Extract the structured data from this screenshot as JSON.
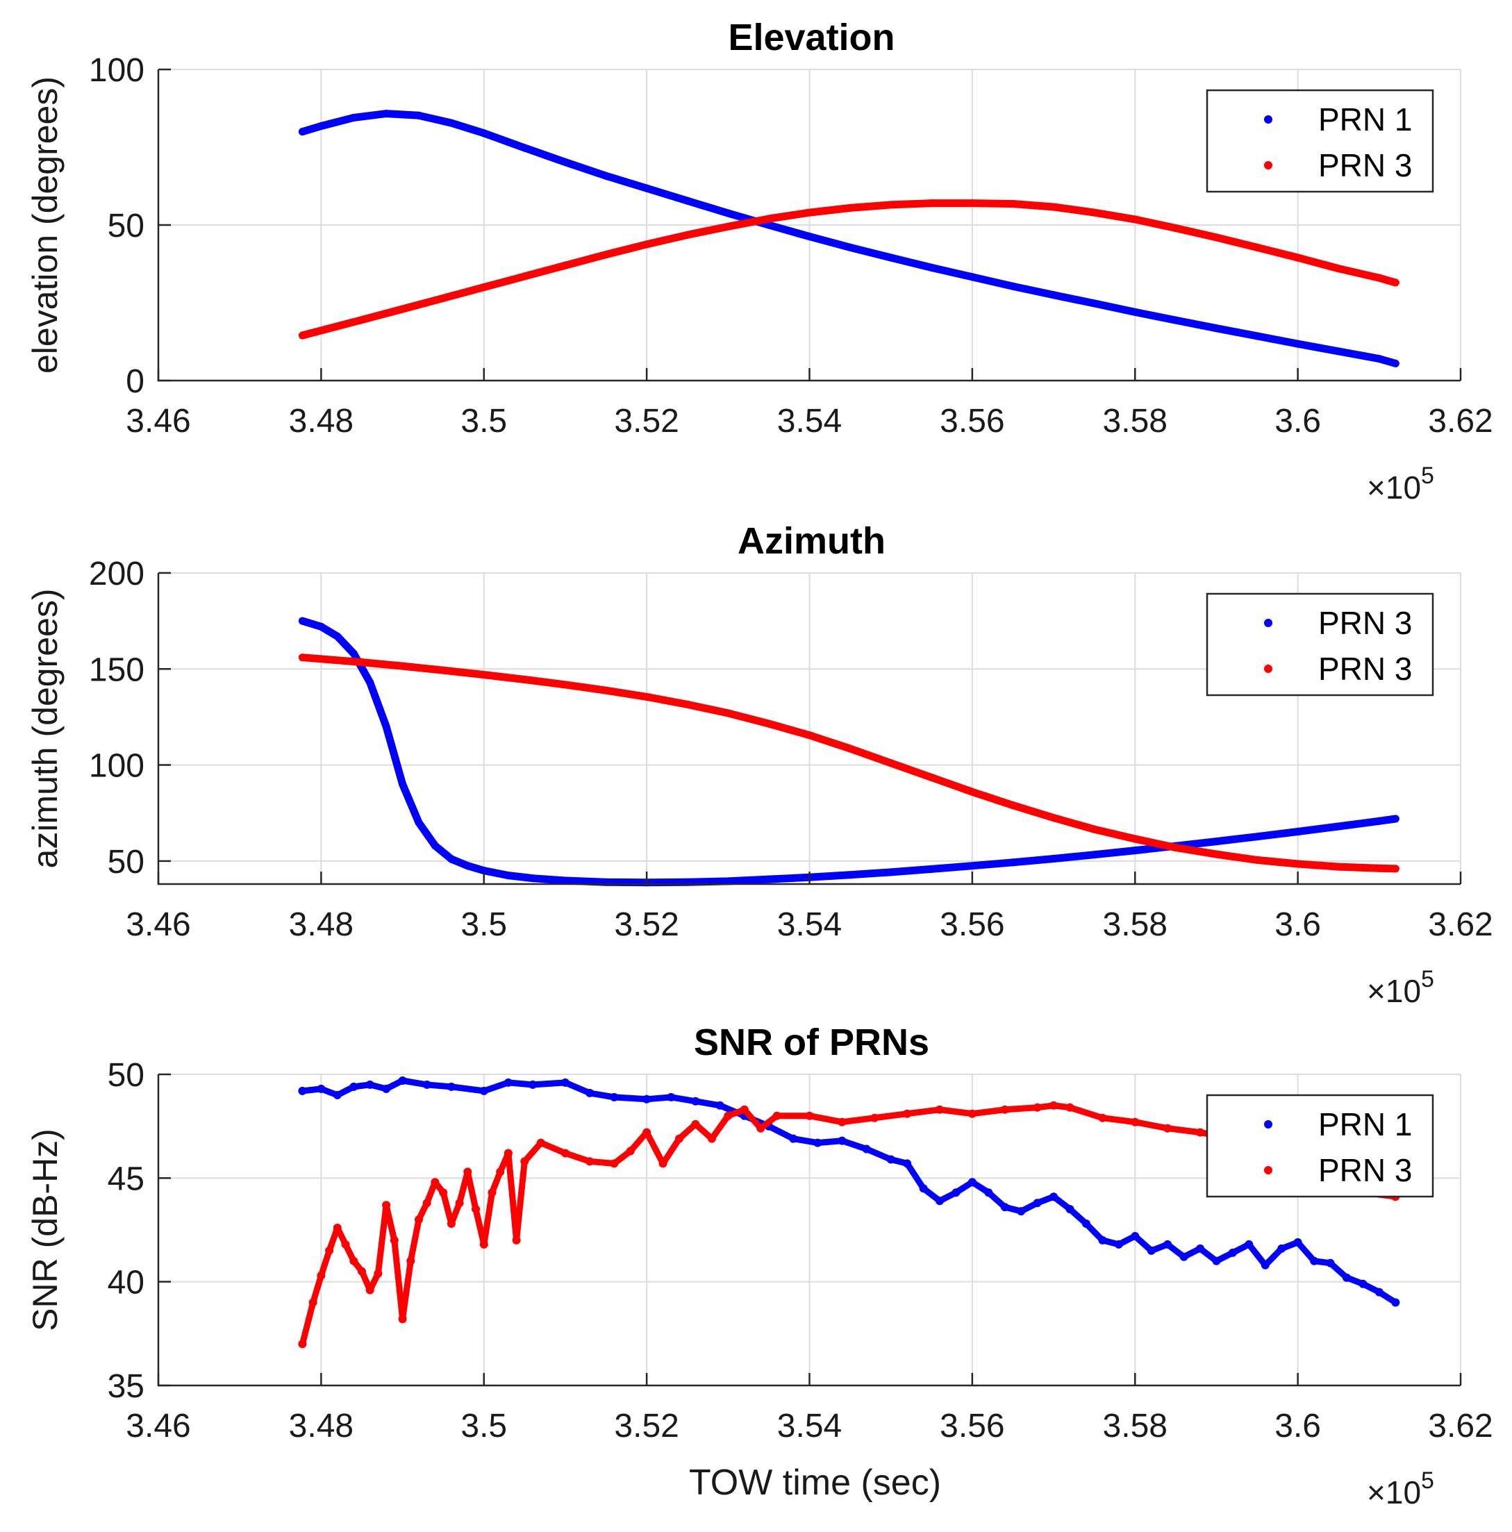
{
  "chart_data": [
    {
      "type": "scatter",
      "title": "Elevation",
      "xlabel": "",
      "ylabel": "elevation (degrees)",
      "xlim": [
        346000,
        362000
      ],
      "ylim": [
        0,
        100
      ],
      "x_ticks": [
        "3.46",
        "3.48",
        "3.5",
        "3.52",
        "3.54",
        "3.56",
        "3.58",
        "3.6",
        "3.62"
      ],
      "x_tick_values": [
        346000,
        348000,
        350000,
        352000,
        354000,
        356000,
        358000,
        360000,
        362000
      ],
      "x_exponent": "10",
      "x_exponent_power": "5",
      "y_ticks": [
        "0",
        "50",
        "100"
      ],
      "y_tick_values": [
        0,
        50,
        100
      ],
      "grid": true,
      "legend_position": "top-right",
      "series": [
        {
          "name": "PRN 1",
          "color": "#0000ff",
          "x": [
            347770,
            348000,
            348400,
            348800,
            349200,
            349600,
            350000,
            350500,
            351000,
            351500,
            352000,
            352500,
            353000,
            353500,
            354000,
            354500,
            355000,
            355500,
            356000,
            356500,
            357000,
            357500,
            358000,
            358500,
            359000,
            359500,
            360000,
            360500,
            361000,
            361200
          ],
          "y": [
            80,
            81.8,
            84.5,
            85.8,
            85.2,
            82.8,
            79.5,
            74.8,
            70.2,
            65.8,
            61.8,
            57.8,
            53.8,
            50,
            46.3,
            42.8,
            39.5,
            36.3,
            33.3,
            30.3,
            27.5,
            24.8,
            22,
            19.4,
            16.8,
            14.3,
            11.8,
            9.4,
            7,
            5.5
          ]
        },
        {
          "name": "PRN 3",
          "color": "#ff0000",
          "x": [
            347770,
            348500,
            349000,
            349500,
            350000,
            350500,
            351000,
            351500,
            352000,
            352500,
            353000,
            353500,
            354000,
            354500,
            355000,
            355500,
            356000,
            356500,
            357000,
            357500,
            358000,
            358500,
            359000,
            359500,
            360000,
            360500,
            361000,
            361200
          ],
          "y": [
            14.5,
            19.5,
            23,
            26.5,
            30,
            33.5,
            37,
            40.5,
            43.8,
            46.8,
            49.5,
            52,
            54,
            55.5,
            56.5,
            57,
            57,
            56.8,
            55.8,
            54,
            51.8,
            49,
            46,
            42.8,
            39.5,
            36,
            33,
            31.5
          ]
        }
      ]
    },
    {
      "type": "scatter",
      "title": "Azimuth",
      "xlabel": "",
      "ylabel": "azimuth (degrees)",
      "xlim": [
        346000,
        362000
      ],
      "ylim": [
        38,
        200
      ],
      "x_ticks": [
        "3.46",
        "3.48",
        "3.5",
        "3.52",
        "3.54",
        "3.56",
        "3.58",
        "3.6",
        "3.62"
      ],
      "x_tick_values": [
        346000,
        348000,
        350000,
        352000,
        354000,
        356000,
        358000,
        360000,
        362000
      ],
      "x_exponent": "10",
      "x_exponent_power": "5",
      "y_ticks": [
        "50",
        "100",
        "150",
        "200"
      ],
      "y_tick_values": [
        50,
        100,
        150,
        200
      ],
      "grid": true,
      "legend_position": "top-right",
      "series": [
        {
          "name": "PRN 3",
          "color": "#0000ff",
          "x": [
            347770,
            348000,
            348200,
            348400,
            348600,
            348800,
            349000,
            349200,
            349400,
            349600,
            349800,
            350000,
            350300,
            350600,
            351000,
            351500,
            352000,
            352500,
            353000,
            353500,
            354000,
            354500,
            355000,
            355500,
            356000,
            356500,
            357000,
            357500,
            358000,
            358500,
            359000,
            359500,
            360000,
            360500,
            361000,
            361200
          ],
          "y": [
            175,
            172,
            167,
            158,
            143,
            120,
            90,
            70,
            58,
            51,
            47.5,
            45,
            42.5,
            41,
            39.8,
            39,
            38.8,
            39,
            39.5,
            40.5,
            41.5,
            42.8,
            44.2,
            45.8,
            47.5,
            49.3,
            51.2,
            53.3,
            55.5,
            57.8,
            60.2,
            62.7,
            65.3,
            68,
            70.8,
            72
          ]
        },
        {
          "name": "PRN 3",
          "color": "#ff0000",
          "x": [
            347770,
            348500,
            349000,
            349500,
            350000,
            350500,
            351000,
            351500,
            352000,
            352500,
            353000,
            353500,
            354000,
            354500,
            355000,
            355500,
            356000,
            356500,
            357000,
            357500,
            358000,
            358500,
            359000,
            359500,
            360000,
            360500,
            361000,
            361200
          ],
          "y": [
            156,
            153.5,
            151.5,
            149.3,
            147,
            144.5,
            141.8,
            138.8,
            135.5,
            131.5,
            127,
            121.5,
            115.5,
            108.5,
            101,
            93.5,
            86,
            79,
            72.5,
            66.5,
            61.5,
            57,
            53.5,
            50.5,
            48.5,
            47,
            46.2,
            46
          ]
        }
      ]
    },
    {
      "type": "scatter",
      "title": "SNR of PRNs",
      "xlabel": "TOW time (sec)",
      "ylabel": "SNR (dB-Hz)",
      "xlim": [
        346000,
        362000
      ],
      "ylim": [
        35,
        50
      ],
      "x_ticks": [
        "3.46",
        "3.48",
        "3.5",
        "3.52",
        "3.54",
        "3.56",
        "3.58",
        "3.6",
        "3.62"
      ],
      "x_tick_values": [
        346000,
        348000,
        350000,
        352000,
        354000,
        356000,
        358000,
        360000,
        362000
      ],
      "x_exponent": "10",
      "x_exponent_power": "5",
      "y_ticks": [
        "35",
        "40",
        "45",
        "50"
      ],
      "y_tick_values": [
        35,
        40,
        45,
        50
      ],
      "grid": true,
      "legend_position": "top-right",
      "series": [
        {
          "name": "PRN 1",
          "color": "#0000ff",
          "x": [
            347770,
            348000,
            348200,
            348400,
            348600,
            348800,
            349000,
            349300,
            349600,
            350000,
            350300,
            350600,
            351000,
            351300,
            351600,
            352000,
            352300,
            352600,
            352900,
            353200,
            353500,
            353800,
            354100,
            354400,
            354700,
            355000,
            355200,
            355400,
            355600,
            355800,
            356000,
            356200,
            356400,
            356600,
            356800,
            357000,
            357200,
            357400,
            357600,
            357800,
            358000,
            358200,
            358400,
            358600,
            358800,
            359000,
            359200,
            359400,
            359600,
            359800,
            360000,
            360200,
            360400,
            360600,
            360800,
            361000,
            361200
          ],
          "y": [
            49.2,
            49.3,
            49.0,
            49.4,
            49.5,
            49.3,
            49.7,
            49.5,
            49.4,
            49.2,
            49.6,
            49.5,
            49.6,
            49.1,
            48.9,
            48.8,
            48.9,
            48.7,
            48.5,
            48.0,
            47.5,
            46.9,
            46.7,
            46.8,
            46.4,
            45.9,
            45.7,
            44.5,
            43.9,
            44.3,
            44.8,
            44.3,
            43.6,
            43.4,
            43.8,
            44.1,
            43.5,
            42.8,
            42.0,
            41.8,
            42.2,
            41.5,
            41.8,
            41.2,
            41.6,
            41.0,
            41.4,
            41.8,
            40.8,
            41.6,
            41.9,
            41.0,
            40.9,
            40.2,
            39.9,
            39.5,
            39.0
          ]
        },
        {
          "name": "PRN 3",
          "color": "#ff0000",
          "x": [
            347770,
            347900,
            348000,
            348100,
            348200,
            348300,
            348400,
            348500,
            348600,
            348700,
            348800,
            348900,
            349000,
            349100,
            349200,
            349300,
            349400,
            349500,
            349600,
            349700,
            349800,
            349900,
            350000,
            350100,
            350200,
            350300,
            350400,
            350500,
            350700,
            351000,
            351300,
            351600,
            351800,
            352000,
            352200,
            352400,
            352600,
            352800,
            353000,
            353200,
            353400,
            353600,
            354000,
            354400,
            354800,
            355200,
            355600,
            356000,
            356400,
            356800,
            357000,
            357200,
            357600,
            358000,
            358400,
            358800,
            359200,
            359600,
            360000,
            360400,
            360800,
            361200
          ],
          "y": [
            37.0,
            39.0,
            40.3,
            41.5,
            42.6,
            41.8,
            41.0,
            40.5,
            39.6,
            40.4,
            43.7,
            42.0,
            38.2,
            41.0,
            43.0,
            43.8,
            44.8,
            44.3,
            42.8,
            43.8,
            45.3,
            43.5,
            41.8,
            44.3,
            45.3,
            46.2,
            42.0,
            45.8,
            46.7,
            46.2,
            45.8,
            45.7,
            46.3,
            47.2,
            45.7,
            46.9,
            47.6,
            46.9,
            48.0,
            48.3,
            47.4,
            48.0,
            48.0,
            47.7,
            47.9,
            48.1,
            48.3,
            48.1,
            48.3,
            48.4,
            48.5,
            48.4,
            47.9,
            47.7,
            47.4,
            47.2,
            46.9,
            46.3,
            45.5,
            44.9,
            44.3,
            44.1
          ]
        }
      ]
    }
  ]
}
